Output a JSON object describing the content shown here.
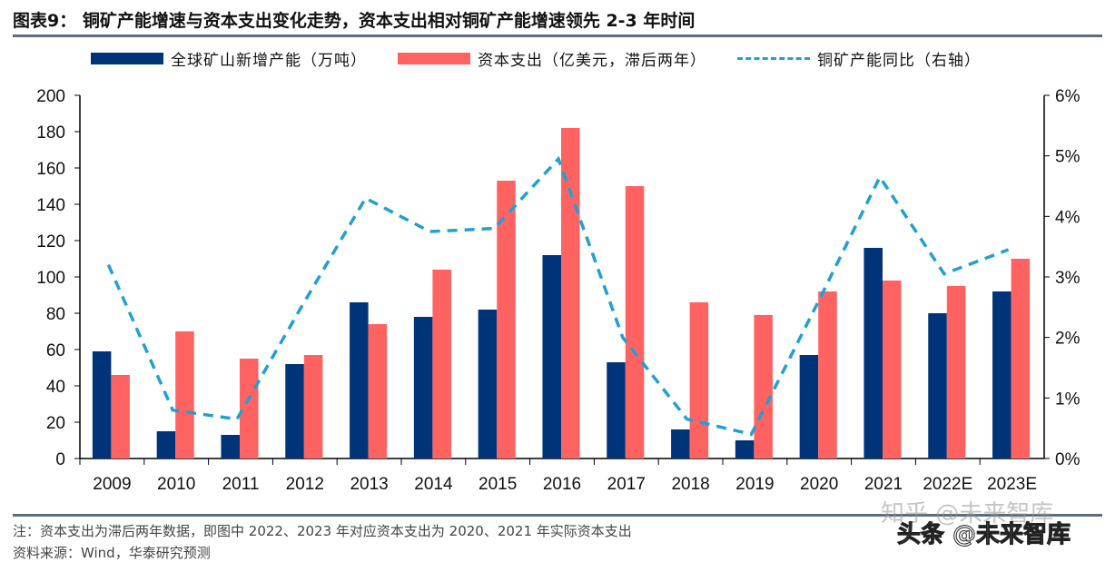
{
  "title": "图表9：  铜矿产能增速与资本支出变化走势，资本支出相对铜矿产能增速领先 2-3 年时间",
  "footnote": "注：资本支出为滞后两年数据，即图中 2022、2023 年对应资本支出为 2020、2021 年实际资本支出",
  "source": "资料来源：Wind，华泰研究预测",
  "watermarks": [
    "知乎 @未来智库",
    "头条 @未来智库"
  ],
  "chart_data": {
    "type": "bar+line",
    "categories": [
      "2009",
      "2010",
      "2011",
      "2012",
      "2013",
      "2014",
      "2015",
      "2016",
      "2017",
      "2018",
      "2019",
      "2020",
      "2021",
      "2022E",
      "2023E"
    ],
    "series": [
      {
        "name": "全球矿山新增产能（万吨）",
        "type": "bar",
        "axis": "left",
        "color": "#003478",
        "values": [
          59,
          15,
          13,
          52,
          86,
          78,
          82,
          112,
          53,
          16,
          10,
          57,
          116,
          80,
          92
        ]
      },
      {
        "name": "资本支出（亿美元，滞后两年）",
        "type": "bar",
        "axis": "left",
        "color": "#ff6361",
        "values": [
          46,
          70,
          55,
          57,
          74,
          104,
          153,
          182,
          150,
          86,
          79,
          92,
          98,
          95,
          110
        ]
      },
      {
        "name": "铜矿产能同比（右轴）",
        "type": "line",
        "style": "dashed",
        "axis": "right",
        "color": "#21a0d2",
        "values": [
          3.2,
          0.8,
          0.65,
          2.5,
          4.3,
          3.75,
          3.8,
          4.95,
          2.0,
          0.65,
          0.4,
          2.5,
          4.65,
          3.05,
          3.45
        ]
      }
    ],
    "y_left": {
      "range": [
        0,
        200
      ],
      "ticks": [
        "0",
        "20",
        "40",
        "60",
        "80",
        "100",
        "120",
        "140",
        "160",
        "180",
        "200"
      ]
    },
    "y_right": {
      "range": [
        0,
        6
      ],
      "ticks": [
        "0%",
        "1%",
        "2%",
        "3%",
        "4%",
        "5%",
        "6%"
      ]
    },
    "legend_position": "top",
    "grid": false
  }
}
